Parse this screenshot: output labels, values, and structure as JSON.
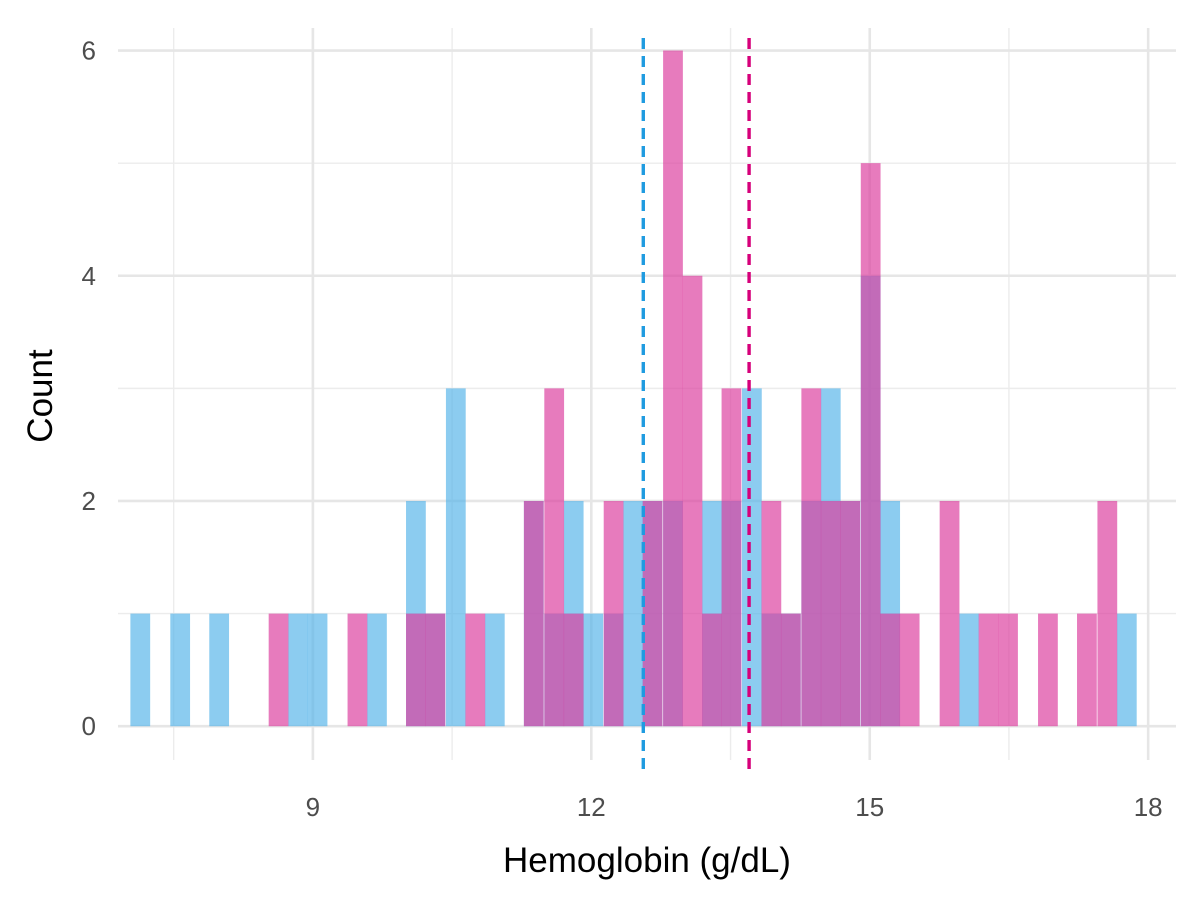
{
  "chart_data": {
    "type": "bar",
    "xlabel": "Hemoglobin (g/dL)",
    "ylabel": "Count",
    "xlim": [
      6.9,
      18.3
    ],
    "ylim": [
      -0.3,
      6.2
    ],
    "x_ticks": [
      9,
      12,
      15,
      18
    ],
    "x_minor_ticks": [
      7.5,
      10.5,
      13.5,
      16.5
    ],
    "y_ticks": [
      0,
      2,
      4,
      6
    ],
    "y_minor_ticks": [
      1,
      3,
      5
    ],
    "grid": true,
    "bin_width": 0.213,
    "series": [
      {
        "color": "#56b4e9",
        "bins": [
          {
            "x": 7.14,
            "count": 1
          },
          {
            "x": 7.57,
            "count": 1
          },
          {
            "x": 7.99,
            "count": 1
          },
          {
            "x": 8.84,
            "count": 1
          },
          {
            "x": 9.05,
            "count": 1
          },
          {
            "x": 9.69,
            "count": 1
          },
          {
            "x": 10.11,
            "count": 2
          },
          {
            "x": 10.32,
            "count": 1
          },
          {
            "x": 10.54,
            "count": 3
          },
          {
            "x": 10.96,
            "count": 1
          },
          {
            "x": 11.38,
            "count": 2
          },
          {
            "x": 11.6,
            "count": 1
          },
          {
            "x": 11.81,
            "count": 2
          },
          {
            "x": 12.02,
            "count": 1
          },
          {
            "x": 12.24,
            "count": 1
          },
          {
            "x": 12.45,
            "count": 2
          },
          {
            "x": 12.66,
            "count": 2
          },
          {
            "x": 12.88,
            "count": 2
          },
          {
            "x": 13.3,
            "count": 2
          },
          {
            "x": 13.51,
            "count": 2
          },
          {
            "x": 13.73,
            "count": 3
          },
          {
            "x": 13.94,
            "count": 1
          },
          {
            "x": 14.15,
            "count": 1
          },
          {
            "x": 14.37,
            "count": 2
          },
          {
            "x": 14.58,
            "count": 3
          },
          {
            "x": 14.79,
            "count": 2
          },
          {
            "x": 15.01,
            "count": 4
          },
          {
            "x": 15.22,
            "count": 2
          },
          {
            "x": 16.07,
            "count": 1
          },
          {
            "x": 17.77,
            "count": 1
          }
        ]
      },
      {
        "color": "#db3d9e",
        "bins": [
          {
            "x": 8.63,
            "count": 1
          },
          {
            "x": 9.48,
            "count": 1
          },
          {
            "x": 10.11,
            "count": 1
          },
          {
            "x": 10.32,
            "count": 1
          },
          {
            "x": 10.75,
            "count": 1
          },
          {
            "x": 11.38,
            "count": 2
          },
          {
            "x": 11.6,
            "count": 3
          },
          {
            "x": 11.81,
            "count": 1
          },
          {
            "x": 12.24,
            "count": 2
          },
          {
            "x": 12.66,
            "count": 2
          },
          {
            "x": 12.88,
            "count": 6
          },
          {
            "x": 13.09,
            "count": 4
          },
          {
            "x": 13.3,
            "count": 1
          },
          {
            "x": 13.51,
            "count": 3
          },
          {
            "x": 13.94,
            "count": 2
          },
          {
            "x": 14.15,
            "count": 1
          },
          {
            "x": 14.37,
            "count": 3
          },
          {
            "x": 14.58,
            "count": 2
          },
          {
            "x": 14.79,
            "count": 2
          },
          {
            "x": 15.01,
            "count": 5
          },
          {
            "x": 15.22,
            "count": 1
          },
          {
            "x": 15.43,
            "count": 1
          },
          {
            "x": 15.86,
            "count": 2
          },
          {
            "x": 16.28,
            "count": 1
          },
          {
            "x": 16.49,
            "count": 1
          },
          {
            "x": 16.92,
            "count": 1
          },
          {
            "x": 17.34,
            "count": 1
          },
          {
            "x": 17.56,
            "count": 2
          }
        ]
      }
    ],
    "reference_lines": [
      {
        "x": 12.56,
        "color": "#1f9be0",
        "style": "dashed"
      },
      {
        "x": 13.7,
        "color": "#d6007a",
        "style": "dashed"
      }
    ],
    "overlap_color": "#9b59b6"
  }
}
